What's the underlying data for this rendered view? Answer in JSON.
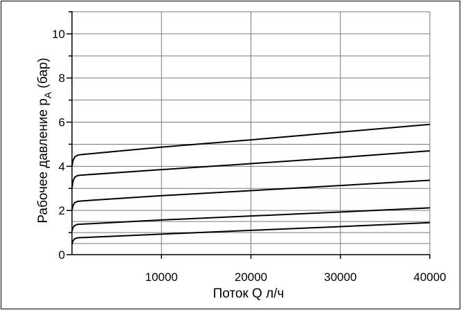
{
  "chart_data": {
    "type": "line",
    "title": "",
    "xlabel": "Поток Q л/ч",
    "ylabel_main": "Рабочее давление p",
    "ylabel_sub": "A",
    "ylabel_tail": " (бар)",
    "xlim": [
      0,
      40000
    ],
    "ylim": [
      0,
      11
    ],
    "x_ticks": [
      10000,
      20000,
      30000,
      40000
    ],
    "x_tick_labels": [
      "10000",
      "20000",
      "30000",
      "40000"
    ],
    "y_ticks_labeled": [
      0,
      2,
      4,
      6,
      8,
      10
    ],
    "y_tick_labels": [
      "0",
      "2",
      "4",
      "6",
      "8",
      "10"
    ],
    "y_ticks_minor": [
      1,
      3,
      5,
      7,
      9,
      11
    ],
    "x_grid": [
      10000,
      20000,
      30000,
      40000
    ],
    "y_grid": [
      0.5,
      1,
      1.5,
      2,
      3,
      4,
      5,
      6,
      7,
      8,
      9,
      10,
      11
    ],
    "grid": true,
    "series": [
      {
        "values": [
          [
            0,
            0.45
          ],
          [
            100,
            0.62
          ],
          [
            300,
            0.72
          ],
          [
            600,
            0.76
          ],
          [
            1000,
            0.77
          ],
          [
            10000,
            0.93
          ],
          [
            20000,
            1.1
          ],
          [
            30000,
            1.27
          ],
          [
            40000,
            1.45
          ]
        ]
      },
      {
        "values": [
          [
            0,
            1.05
          ],
          [
            100,
            1.22
          ],
          [
            300,
            1.32
          ],
          [
            600,
            1.37
          ],
          [
            1000,
            1.38
          ],
          [
            10000,
            1.57
          ],
          [
            20000,
            1.75
          ],
          [
            30000,
            1.93
          ],
          [
            40000,
            2.12
          ]
        ]
      },
      {
        "values": [
          [
            0,
            2.0
          ],
          [
            100,
            2.22
          ],
          [
            300,
            2.35
          ],
          [
            600,
            2.41
          ],
          [
            1000,
            2.43
          ],
          [
            10000,
            2.67
          ],
          [
            20000,
            2.9
          ],
          [
            30000,
            3.13
          ],
          [
            40000,
            3.37
          ]
        ]
      },
      {
        "values": [
          [
            0,
            3.0
          ],
          [
            100,
            3.32
          ],
          [
            300,
            3.5
          ],
          [
            600,
            3.58
          ],
          [
            1000,
            3.6
          ],
          [
            10000,
            3.85
          ],
          [
            20000,
            4.12
          ],
          [
            30000,
            4.4
          ],
          [
            40000,
            4.7
          ]
        ]
      },
      {
        "values": [
          [
            0,
            4.0
          ],
          [
            100,
            4.25
          ],
          [
            300,
            4.42
          ],
          [
            600,
            4.5
          ],
          [
            1000,
            4.53
          ],
          [
            10000,
            4.87
          ],
          [
            20000,
            5.2
          ],
          [
            30000,
            5.55
          ],
          [
            40000,
            5.9
          ]
        ]
      }
    ]
  }
}
